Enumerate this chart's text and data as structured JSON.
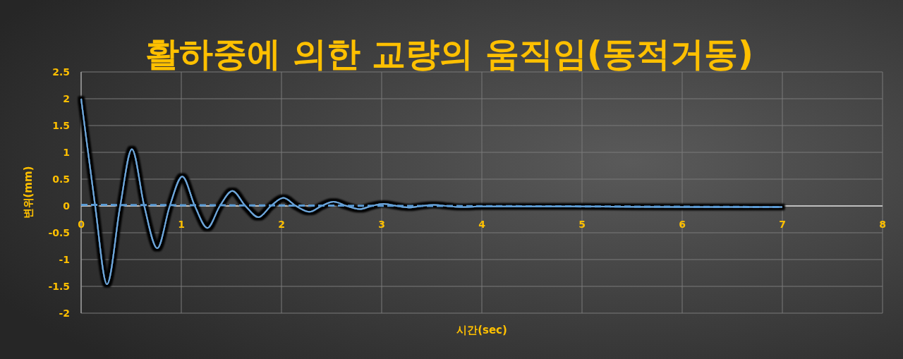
{
  "chart_data": {
    "type": "line",
    "title": "활하중에 의한 교량의 움직임(동적거동)",
    "xlabel": "시간(sec)",
    "ylabel": "변위(mm)",
    "xlim": [
      0,
      8
    ],
    "ylim": [
      -2,
      2.5
    ],
    "xticks": [
      0,
      1,
      2,
      3,
      4,
      5,
      6,
      7,
      8
    ],
    "yticks": [
      -2,
      -1.5,
      -1,
      -0.5,
      0,
      0.5,
      1,
      1.5,
      2,
      2.5
    ],
    "grid": true,
    "series": [
      {
        "color": "#6fa8dc",
        "line_style": "solid",
        "x": [
          0,
          0.14,
          0.258,
          0.39,
          0.507,
          0.63,
          0.76,
          0.885,
          1.01,
          1.135,
          1.26,
          1.385,
          1.51,
          1.64,
          1.77,
          1.895,
          2.02,
          2.145,
          2.28,
          2.4,
          2.52,
          2.65,
          2.78,
          2.9,
          3.02,
          3.15,
          3.27,
          3.4,
          3.52,
          3.65,
          3.78,
          4,
          4.5,
          5,
          6,
          7
        ],
        "values": [
          2,
          0,
          -1.46,
          0,
          1.06,
          0,
          -0.79,
          0,
          0.55,
          0,
          -0.41,
          0,
          0.28,
          0,
          -0.21,
          0,
          0.15,
          0,
          -0.11,
          0,
          0.08,
          0,
          -0.06,
          0,
          0.04,
          0,
          -0.03,
          0,
          0.02,
          0,
          -0.02,
          -0.01,
          -0.01,
          -0.01,
          -0.02,
          -0.02
        ]
      },
      {
        "type": "line",
        "color": "#5b9bd5",
        "line_style": "dashed",
        "x": [
          0,
          7
        ],
        "values": [
          0.02,
          -0.02
        ]
      }
    ]
  }
}
